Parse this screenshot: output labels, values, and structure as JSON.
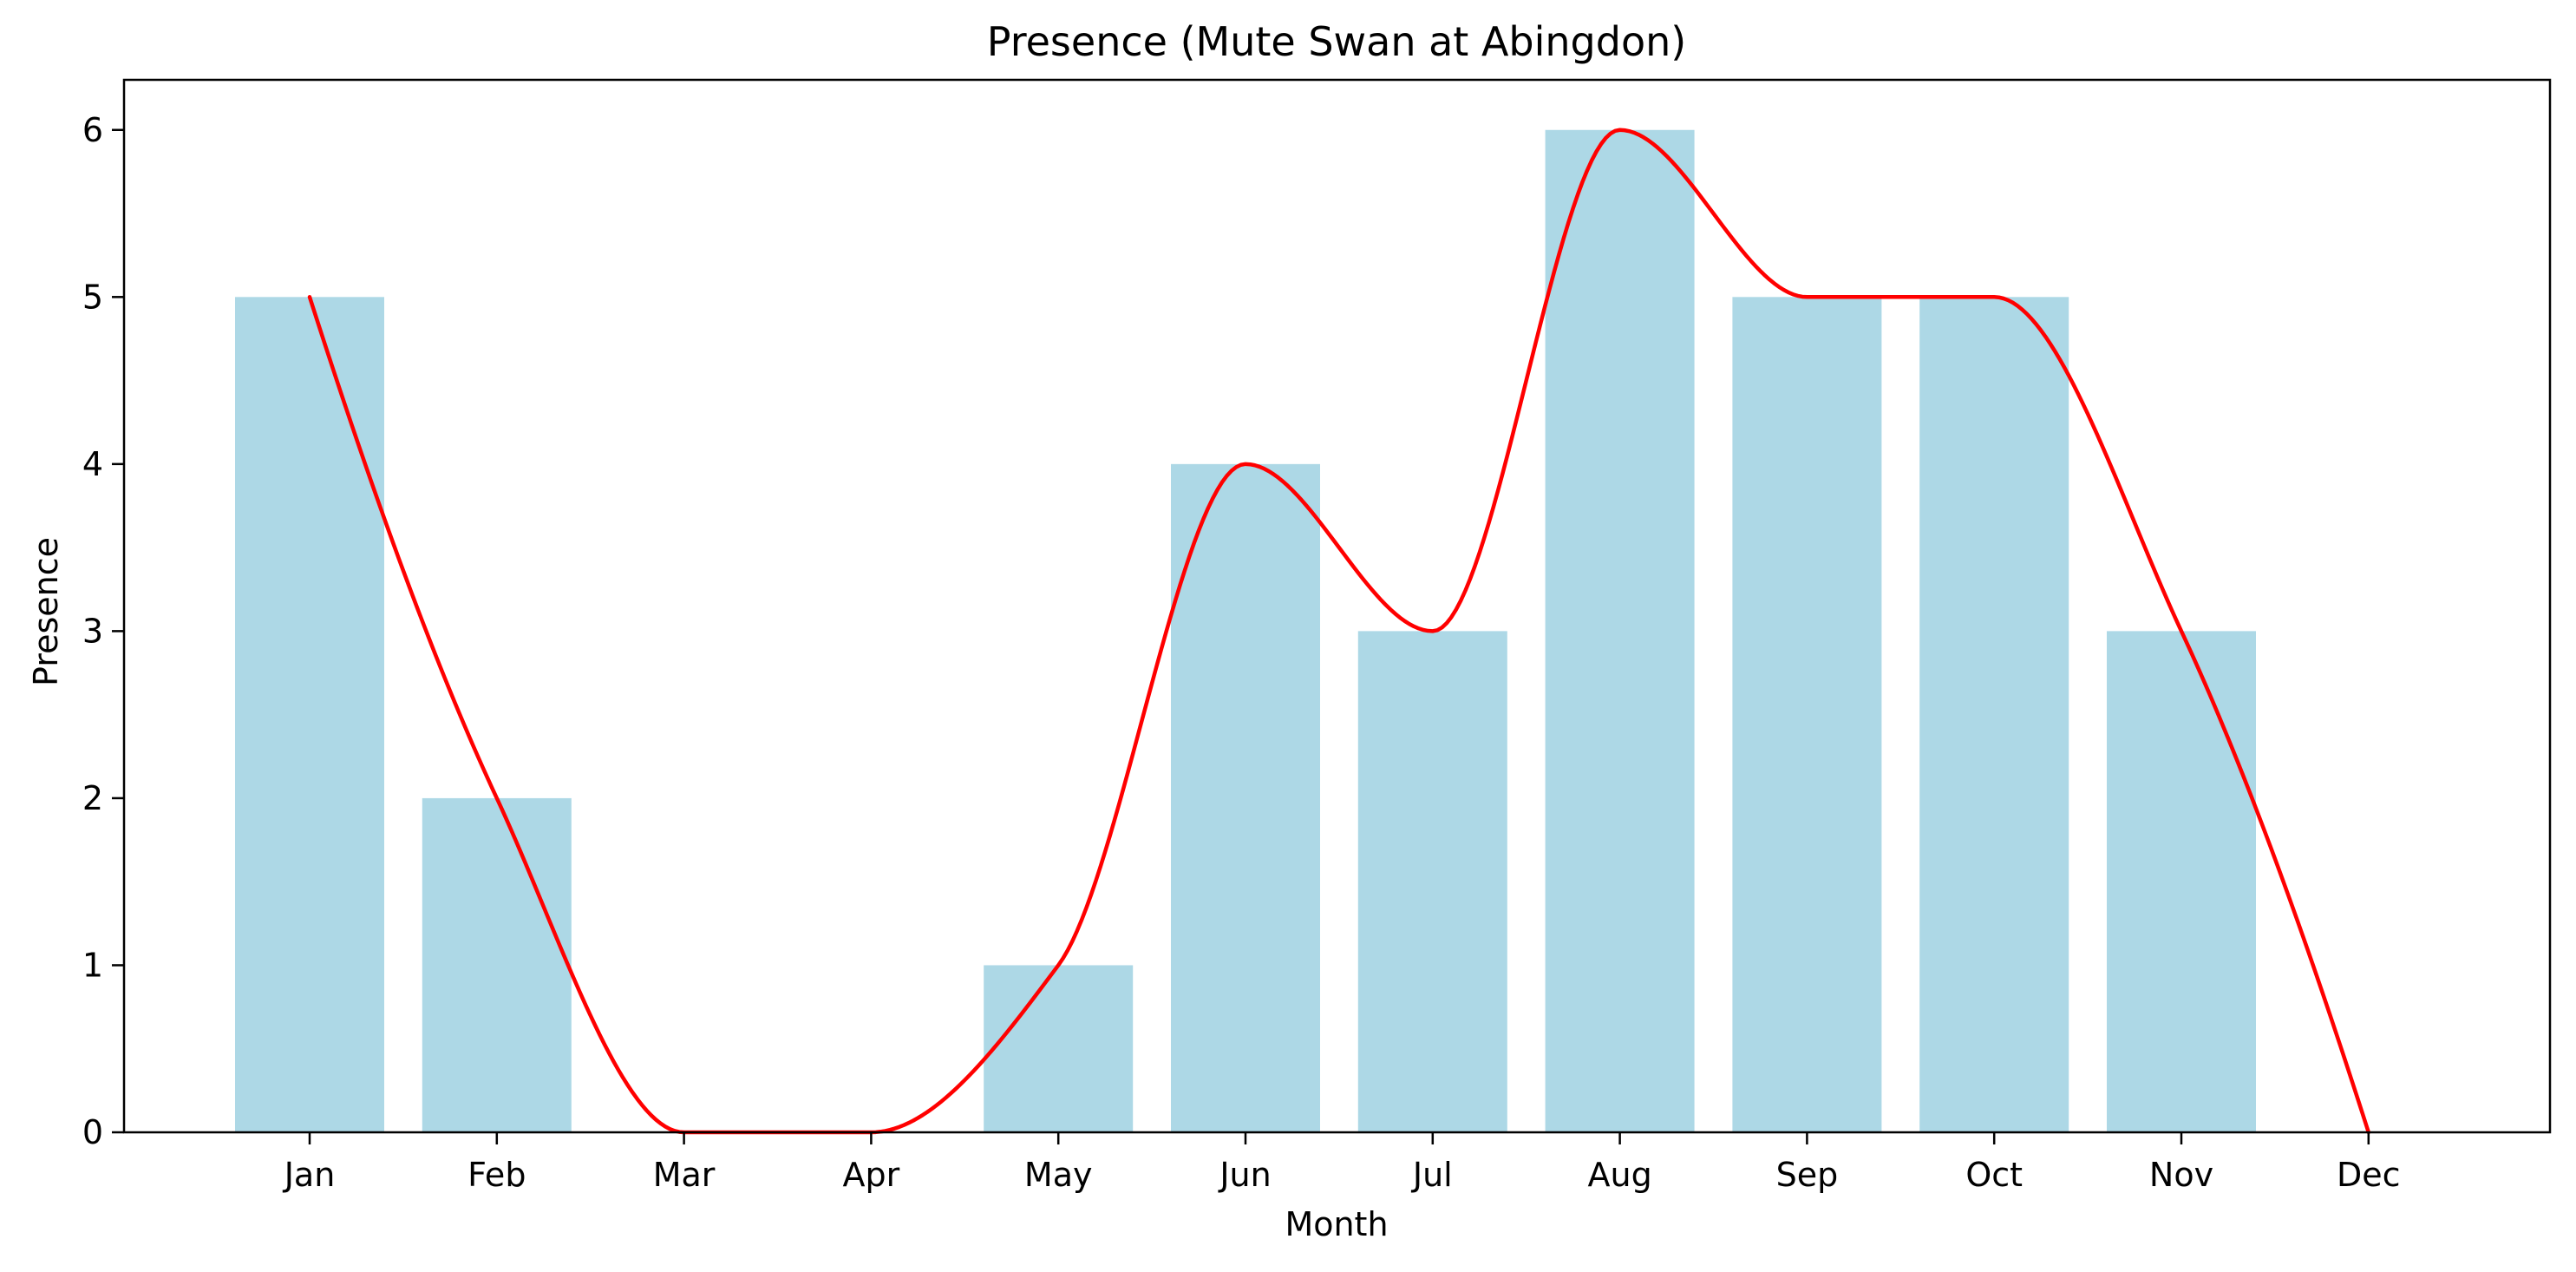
{
  "chart_data": {
    "type": "bar",
    "title": "Presence (Mute Swan at Abingdon)",
    "xlabel": "Month",
    "ylabel": "Presence",
    "categories": [
      "Jan",
      "Feb",
      "Mar",
      "Apr",
      "May",
      "Jun",
      "Jul",
      "Aug",
      "Sep",
      "Oct",
      "Nov",
      "Dec"
    ],
    "values": [
      5,
      2,
      0,
      0,
      1,
      4,
      3,
      6,
      5,
      5,
      3,
      0
    ],
    "ylim": [
      0,
      6.3
    ],
    "yticks": [
      0,
      1,
      2,
      3,
      4,
      5,
      6
    ],
    "grid": false,
    "series": [
      {
        "kind": "bar",
        "values": [
          5,
          2,
          0,
          0,
          1,
          4,
          3,
          6,
          5,
          5,
          3,
          0
        ],
        "color": "#add8e6"
      },
      {
        "kind": "smoothed-line",
        "values": [
          5,
          2,
          0,
          0,
          1,
          4,
          3,
          6,
          5,
          5,
          3,
          0
        ],
        "color": "#ff0000"
      }
    ]
  }
}
